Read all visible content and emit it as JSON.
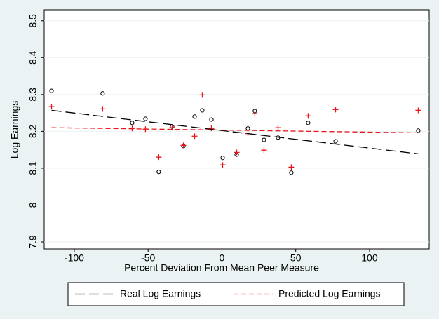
{
  "chart_data": {
    "type": "scatter",
    "xlabel": "Percent Deviation From Mean Peer Measure",
    "ylabel": "Log Earnings",
    "xlim": [
      -120.4,
      140.4
    ],
    "ylim": [
      7.881,
      8.53
    ],
    "xticks": [
      -100,
      -50,
      0,
      50,
      100
    ],
    "yticks": [
      7.9,
      8,
      8.1,
      8.2,
      8.3,
      8.4,
      8.5
    ],
    "grid": true,
    "legend": "bottom",
    "series": [
      {
        "marker": "circle",
        "color": "#000000",
        "x": [
          -115.4,
          -80.8,
          -60.8,
          -51.8,
          -42.8,
          -33.7,
          -26.1,
          -18.5,
          -13.3,
          -7.1,
          0.5,
          10.0,
          17.6,
          22.3,
          28.5,
          38.0,
          47.0,
          58.4,
          77.0,
          133.0
        ],
        "values": [
          8.31,
          8.303,
          8.223,
          8.234,
          8.09,
          8.213,
          8.16,
          8.24,
          8.257,
          8.232,
          8.128,
          8.137,
          8.208,
          8.255,
          8.177,
          8.183,
          8.088,
          8.223,
          8.173,
          8.202
        ]
      },
      {
        "marker": "plus",
        "color": "#e8141b",
        "x": [
          -115.4,
          -80.8,
          -60.8,
          -51.8,
          -42.8,
          -33.7,
          -26.1,
          -18.5,
          -13.3,
          -7.1,
          0.5,
          10.0,
          17.6,
          22.3,
          28.5,
          38.0,
          47.0,
          58.4,
          77.0,
          133.0
        ],
        "values": [
          8.267,
          8.261,
          8.208,
          8.206,
          8.13,
          8.21,
          8.162,
          8.187,
          8.299,
          8.208,
          8.109,
          8.143,
          8.194,
          8.248,
          8.149,
          8.21,
          8.103,
          8.242,
          8.259,
          8.257
        ]
      },
      {
        "name": "Real Log Earnings",
        "line": "long-dash",
        "color": "#000000",
        "x": [
          -115.4,
          133.0
        ],
        "values": [
          8.257,
          8.139
        ]
      },
      {
        "name": "Predicted Log Earnings",
        "line": "dash",
        "color": "#e8141b",
        "x": [
          -115.4,
          133.0
        ],
        "values": [
          8.21,
          8.196
        ]
      }
    ]
  }
}
